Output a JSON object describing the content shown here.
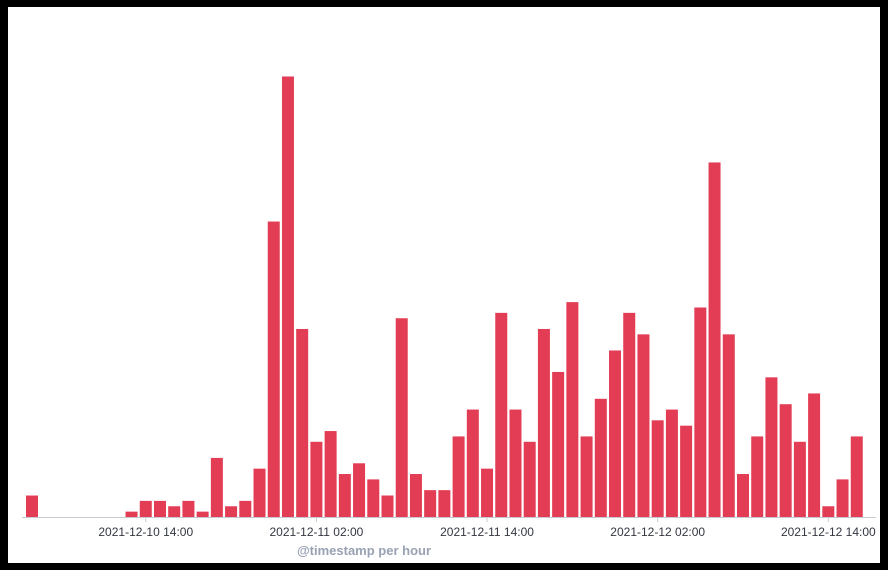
{
  "chart_data": {
    "type": "bar",
    "xlabel": "@timestamp per hour",
    "ylabel": "",
    "title": "",
    "x_start": "2021-12-10 06:00",
    "x_interval": "1 hour",
    "x_tick_labels": [
      "2021-12-10 14:00",
      "2021-12-11 02:00",
      "2021-12-11 14:00",
      "2021-12-12 02:00",
      "2021-12-12 14:00"
    ],
    "values": [
      4,
      0,
      0,
      0,
      0,
      0,
      0,
      1,
      3,
      3,
      2,
      3,
      1,
      11,
      2,
      3,
      9,
      55,
      82,
      35,
      14,
      16,
      8,
      10,
      7,
      4,
      37,
      8,
      5,
      5,
      15,
      20,
      9,
      38,
      20,
      14,
      35,
      27,
      40,
      15,
      22,
      31,
      38,
      34,
      18,
      20,
      17,
      39,
      66,
      34,
      8,
      15,
      26,
      21,
      14,
      23,
      2,
      7,
      15
    ],
    "ylim": [
      0,
      86
    ],
    "grid": false,
    "bar_color": "#e33d55",
    "axis_color": "#c7cbd1"
  }
}
